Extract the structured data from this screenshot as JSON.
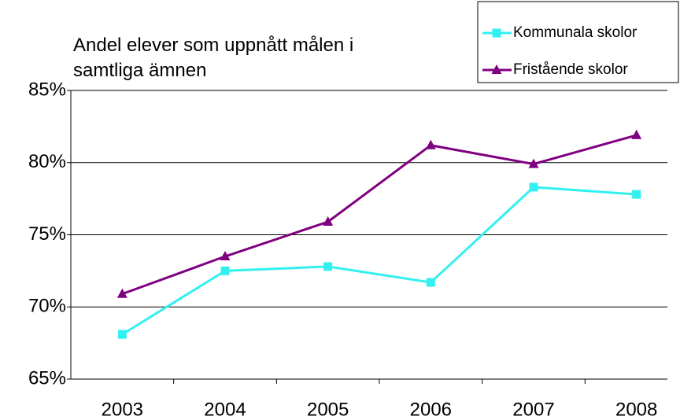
{
  "chart_data": {
    "type": "line",
    "title": "Andel elever som uppnått målen i samtliga ämnen",
    "categories": [
      "2003",
      "2004",
      "2005",
      "2006",
      "2007",
      "2008"
    ],
    "series": [
      {
        "name": "Kommunala skolor",
        "color": "#33f0f0",
        "marker": "square",
        "values": [
          68.1,
          72.5,
          72.8,
          71.7,
          78.3,
          77.8
        ]
      },
      {
        "name": "Fristående skolor",
        "color": "#800080",
        "marker": "triangle",
        "values": [
          70.9,
          73.5,
          75.9,
          81.2,
          79.9,
          81.9
        ]
      }
    ],
    "ylim": [
      65,
      85
    ],
    "yticks": [
      {
        "value": 65,
        "label": "65%"
      },
      {
        "value": 70,
        "label": "70%"
      },
      {
        "value": 75,
        "label": "75%"
      },
      {
        "value": 80,
        "label": "80%"
      },
      {
        "value": 85,
        "label": "85%"
      }
    ],
    "grid": true,
    "legend": "top-right"
  }
}
